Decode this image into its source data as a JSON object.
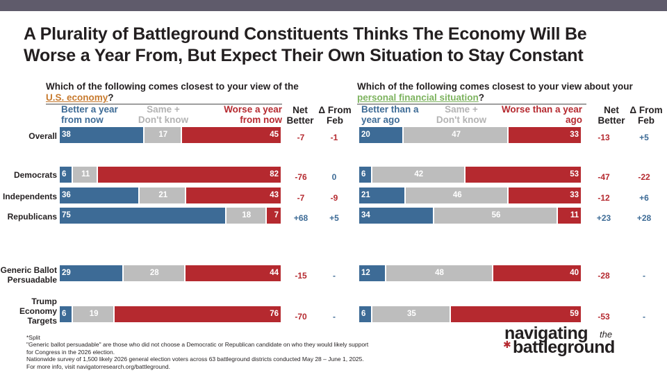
{
  "title": {
    "line1": "A Plurality of Battleground Constituents Thinks The Economy Will Be",
    "line2": "Worse a Year From, But Expect Their Own Situation to Stay Constant"
  },
  "left_question": {
    "text_before": "Which of the following comes closest to your view of the",
    "highlight": "U.S. economy",
    "text_after": "?"
  },
  "right_question": {
    "text_before": "Which of the following comes closest to your view about your",
    "highlight": "personal financial situation",
    "text_after": "?"
  },
  "left_headers": {
    "better": "Better a year from now",
    "same": "Same + Don't know",
    "worse": "Worse a year from now"
  },
  "right_headers": {
    "better": "Better than a year ago",
    "same": "Same + Don't know",
    "worse": "Worse than a year ago"
  },
  "net_header": "Net Better",
  "delta_header": "Δ From Feb",
  "colors": {
    "better": "#3d6b96",
    "same": "#bdbdbd",
    "worse": "#b5292f"
  },
  "chart_data": [
    {
      "type": "bar",
      "stacked": true,
      "orientation": "horizontal",
      "title": "U.S. economy",
      "categories": [
        "Overall",
        "Democrats",
        "Independents",
        "Republicans",
        "Generic Ballot Persuadable",
        "Trump Economy Targets"
      ],
      "series": [
        {
          "name": "Better a year from now",
          "values": [
            38,
            6,
            36,
            75,
            29,
            6
          ]
        },
        {
          "name": "Same + Don't know",
          "values": [
            17,
            11,
            21,
            18,
            28,
            19
          ]
        },
        {
          "name": "Worse a year from now",
          "values": [
            45,
            82,
            43,
            7,
            44,
            76
          ]
        }
      ],
      "net_better": [
        "-7",
        "-76",
        "-7",
        "+68",
        "-15",
        "-70"
      ],
      "delta_from_feb": [
        "-1",
        "0",
        "-9",
        "+5",
        "-",
        "-"
      ]
    },
    {
      "type": "bar",
      "stacked": true,
      "orientation": "horizontal",
      "title": "Personal financial situation",
      "categories": [
        "Overall",
        "Democrats",
        "Independents",
        "Republicans",
        "Generic Ballot Persuadable",
        "Trump Economy Targets"
      ],
      "series": [
        {
          "name": "Better than a year ago",
          "values": [
            20,
            6,
            21,
            34,
            12,
            6
          ]
        },
        {
          "name": "Same + Don't know",
          "values": [
            47,
            42,
            46,
            56,
            48,
            35
          ]
        },
        {
          "name": "Worse than a year ago",
          "values": [
            33,
            53,
            33,
            11,
            40,
            59
          ]
        }
      ],
      "net_better": [
        "-13",
        "-47",
        "-12",
        "+23",
        "-28",
        "-53"
      ],
      "delta_from_feb": [
        "+5",
        "-22",
        "+6",
        "+28",
        "-",
        "-"
      ]
    }
  ],
  "row_labels": [
    "Overall",
    "Democrats",
    "Independents",
    "Republicans",
    "Generic Ballot\nPersuadable",
    "Trump\nEconomy\nTargets"
  ],
  "footnotes": [
    "*Split",
    "\"Generic ballot persuadable\" are those who did not choose a Democratic or Republican candidate on who they would likely support",
    "for Congress in the 2026 election.",
    "Nationwide survey of 1,500 likely 2026 general election voters across 63 battleground districts conducted May 28 – June 1, 2025.",
    "For more info, visit navigatorresearch.org/battleground."
  ],
  "logo": {
    "line1": "navigating",
    "the": "the",
    "line2": "battleground"
  }
}
